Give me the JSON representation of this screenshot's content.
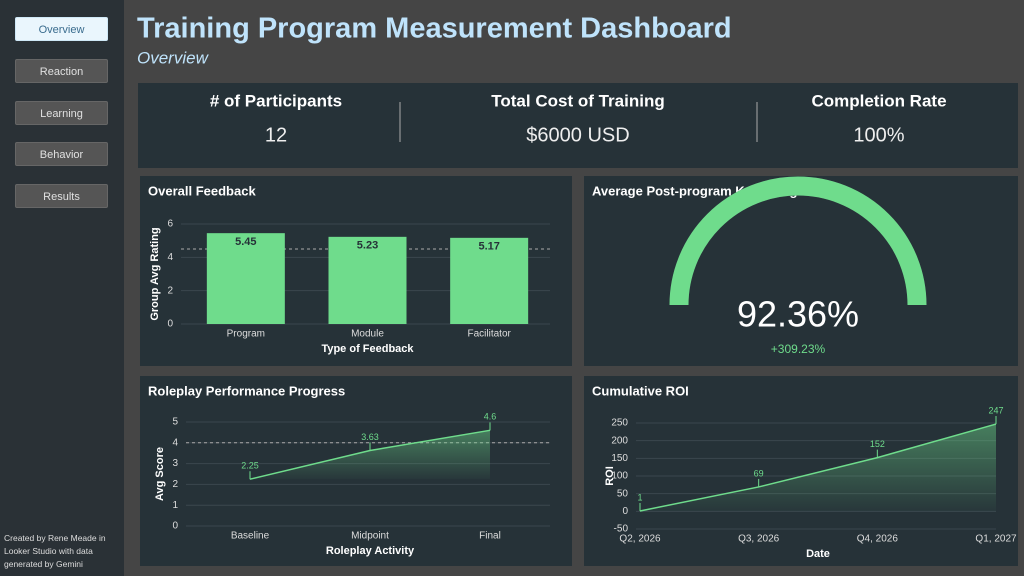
{
  "nav": [
    "Overview",
    "Reaction",
    "Learning",
    "Behavior",
    "Results"
  ],
  "title": "Training Program Measurement Dashboard",
  "subtitle": "Overview",
  "kpis": [
    {
      "label": "# of Participants",
      "value": "12"
    },
    {
      "label": "Total Cost of Training",
      "value": "$6000 USD"
    },
    {
      "label": "Completion Rate",
      "value": "100%"
    }
  ],
  "chart_data": [
    {
      "type": "bar",
      "title": "Overall Feedback",
      "categories": [
        "Program",
        "Module",
        "Facilitator"
      ],
      "values": [
        5.45,
        5.23,
        5.17
      ],
      "color": "#6fdc8c",
      "ylim": [
        0,
        6
      ],
      "yticks": [
        0,
        2,
        4,
        6
      ],
      "xlabel": "Type of Feedback",
      "ylabel": "Group Avg Rating",
      "reference_line": 4.5,
      "grid": true
    },
    {
      "type": "gauge",
      "title": "Average Post-program Knowledge",
      "value": 92.36,
      "value_label": "92.36%",
      "delta": "+309.23%",
      "ylim": [
        0,
        92.36
      ],
      "color": "#6fdc8c"
    },
    {
      "type": "line",
      "title": "Roleplay Performance Progress",
      "categories": [
        "Baseline",
        "Midpoint",
        "Final"
      ],
      "values": [
        2.25,
        3.63,
        4.6
      ],
      "color": "#6fdc8c",
      "ylim": [
        0,
        5
      ],
      "yticks": [
        0,
        1,
        2,
        3,
        4,
        5
      ],
      "xlabel": "Roleplay Activity",
      "ylabel": "Avg Score",
      "reference_line": 4,
      "grid": true
    },
    {
      "type": "line",
      "title": "Cumulative ROI",
      "categories": [
        "Q2, 2026",
        "Q3, 2026",
        "Q4, 2026",
        "Q1, 2027"
      ],
      "values": [
        1,
        69,
        152,
        247
      ],
      "color": "#6fdc8c",
      "ylim": [
        -50,
        250
      ],
      "yticks": [
        -50,
        0,
        50,
        100,
        150,
        200,
        250
      ],
      "xlabel": "Date",
      "ylabel": "ROI",
      "grid": true
    }
  ],
  "footer": "Created by Rene Meade in Looker Studio with data generated by Gemini"
}
